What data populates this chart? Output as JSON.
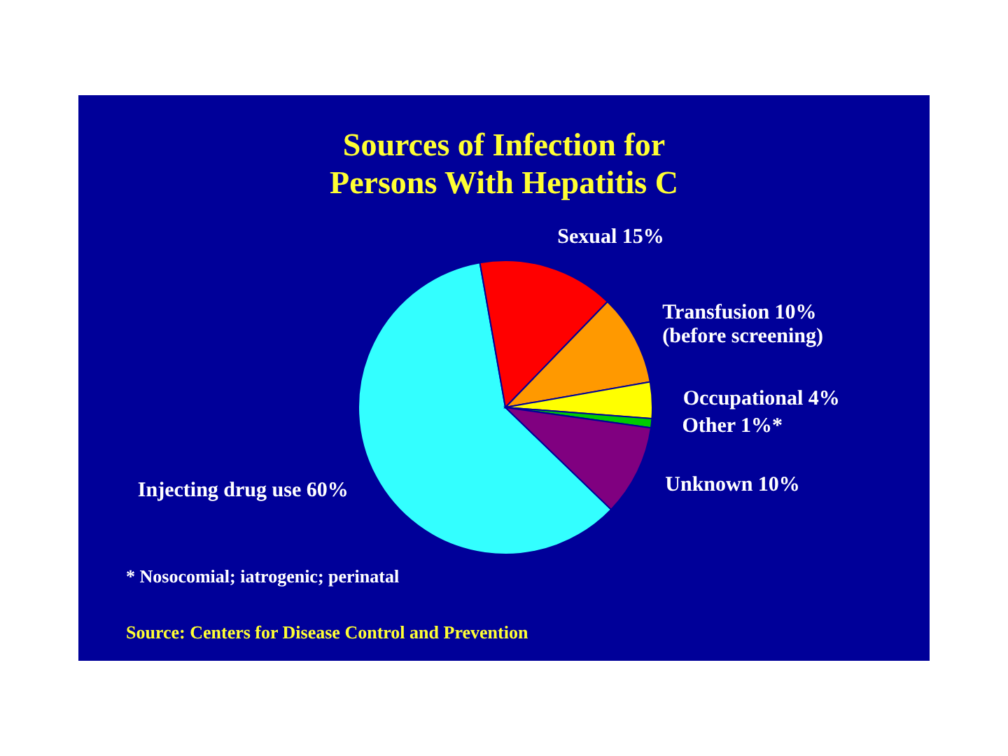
{
  "chart_data": {
    "type": "pie",
    "title": "Sources of Infection for Persons With Hepatitis C",
    "categories": [
      "Injecting drug use",
      "Sexual",
      "Transfusion",
      "Occupational",
      "Other",
      "Unknown"
    ],
    "values": [
      60,
      15,
      10,
      4,
      1,
      10
    ],
    "colors": [
      "#33ffff",
      "#ff0000",
      "#ff9900",
      "#ffff00",
      "#00cc00",
      "#800080"
    ],
    "value_labels": [
      "60%",
      "15%",
      "10%",
      "4%",
      "1%*",
      "10%"
    ],
    "annotations": [
      {
        "text": "(before screening)",
        "x": "Transfusion"
      },
      "* Nosocomial; iatrogenic; perinatal",
      "Source: Centers for Disease Control and Prevention"
    ]
  }
}
